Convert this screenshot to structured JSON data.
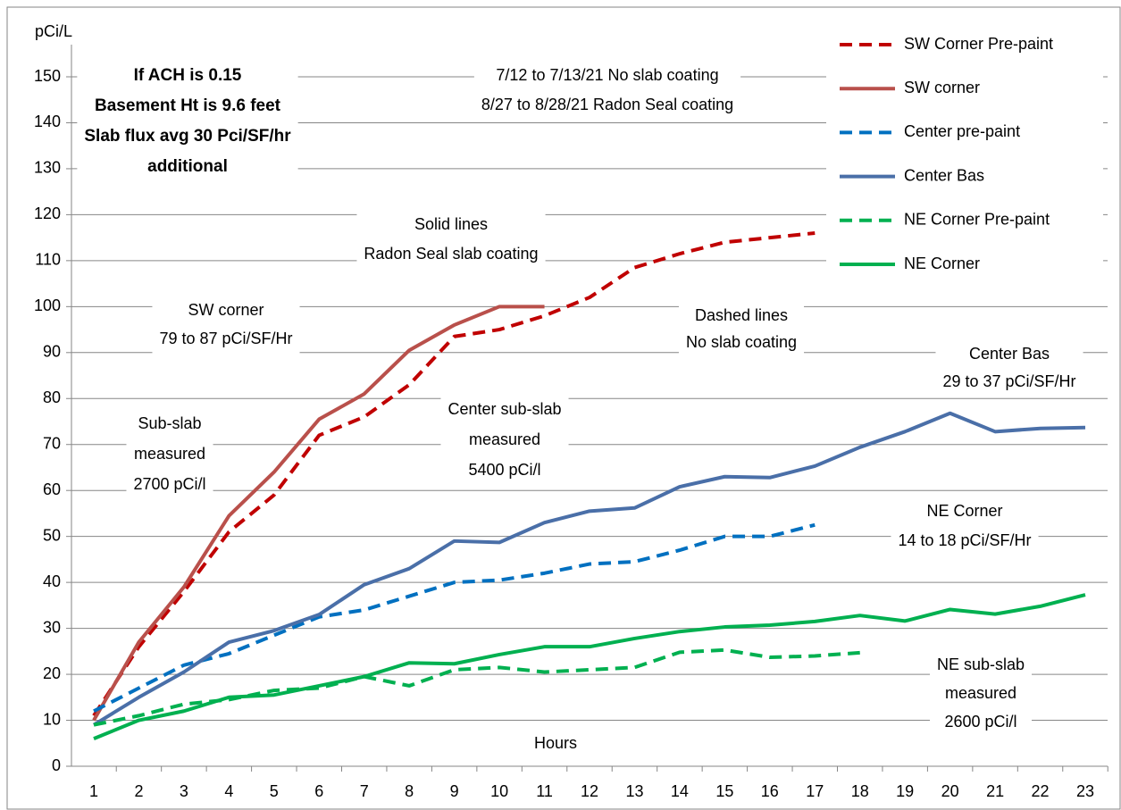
{
  "chart_data": {
    "type": "line",
    "y_label": "pCi/L",
    "x_label": "Hours",
    "categories": [
      "1",
      "2",
      "3",
      "4",
      "5",
      "6",
      "7",
      "8",
      "9",
      "10",
      "11",
      "12",
      "13",
      "14",
      "15",
      "16",
      "17",
      "18",
      "19",
      "20",
      "21",
      "22",
      "23"
    ],
    "ylim": [
      0,
      150
    ],
    "yticks": [
      0,
      10,
      20,
      30,
      40,
      50,
      60,
      70,
      80,
      90,
      100,
      110,
      120,
      130,
      140,
      150
    ],
    "grid": true,
    "series": [
      {
        "name": "SW Corner Pre-paint",
        "color": "#c00000",
        "dashed": true,
        "values": [
          11,
          26,
          38,
          51,
          59,
          72,
          76,
          83,
          93.5,
          95,
          98,
          102,
          108.5,
          111.5,
          114,
          115,
          116,
          null,
          null,
          null,
          null,
          null,
          null
        ]
      },
      {
        "name": "SW corner",
        "color": "#b9504b",
        "dashed": false,
        "values": [
          10,
          27,
          39,
          54.5,
          64,
          75.5,
          81,
          90.5,
          96,
          100,
          100,
          null,
          null,
          null,
          null,
          null,
          null,
          null,
          null,
          null,
          null,
          null,
          null
        ]
      },
      {
        "name": "Center pre-paint",
        "color": "#0070c0",
        "dashed": true,
        "values": [
          12,
          17,
          22,
          24.5,
          28.5,
          32.5,
          34,
          37,
          40,
          40.5,
          42,
          44,
          44.5,
          47,
          50,
          50,
          52.5,
          null,
          null,
          null,
          null,
          null,
          null
        ]
      },
      {
        "name": "Center Bas",
        "color": "#4a6fa8",
        "dashed": false,
        "values": [
          9,
          15,
          20.5,
          27,
          29.5,
          33,
          39.5,
          43,
          49,
          48.7,
          53,
          55.5,
          56.2,
          60.8,
          63,
          62.8,
          65.3,
          69.4,
          72.8,
          76.8,
          72.8,
          73.5,
          73.7
        ]
      },
      {
        "name": "NE Corner Pre-paint",
        "color": "#00b050",
        "dashed": true,
        "values": [
          9,
          11,
          13.5,
          14.5,
          16.5,
          17,
          19.5,
          17.5,
          21,
          21.5,
          20.5,
          21,
          21.5,
          24.8,
          25.3,
          23.7,
          24,
          24.7,
          null,
          null,
          null,
          null,
          null
        ]
      },
      {
        "name": "NE Corner",
        "color": "#00b050",
        "dashed": false,
        "values": [
          6,
          10,
          12,
          15,
          15.5,
          17.5,
          19.5,
          22.5,
          22.3,
          24.3,
          26,
          26,
          27.8,
          29.3,
          30.3,
          30.7,
          31.5,
          32.8,
          31.6,
          34.1,
          33.1,
          34.8,
          37.3
        ]
      }
    ],
    "annotations": [
      [
        "If ACH is 0.15",
        "Basement Ht is 9.6 feet",
        "Slab flux  avg 30 Pci/SF/hr",
        "additional"
      ],
      [
        "7/12 to 7/13/21  No slab coating",
        "8/27 to 8/28/21  Radon Seal coating"
      ],
      [
        "Solid lines",
        "Radon Seal slab coating"
      ],
      [
        "SW corner",
        "79 to 87 pCi/SF/Hr"
      ],
      [
        "Dashed lines",
        "No slab coating"
      ],
      [
        "Center Bas",
        "29 to 37 pCi/SF/Hr"
      ],
      [
        "Sub-slab",
        "measured",
        "2700 pCi/l"
      ],
      [
        "Center sub-slab",
        "measured",
        "5400 pCi/l"
      ],
      [
        "NE Corner",
        "14 to 18 pCi/SF/Hr"
      ],
      [
        "NE sub-slab",
        "measured",
        "2600 pCi/l"
      ]
    ],
    "legend": "right"
  }
}
